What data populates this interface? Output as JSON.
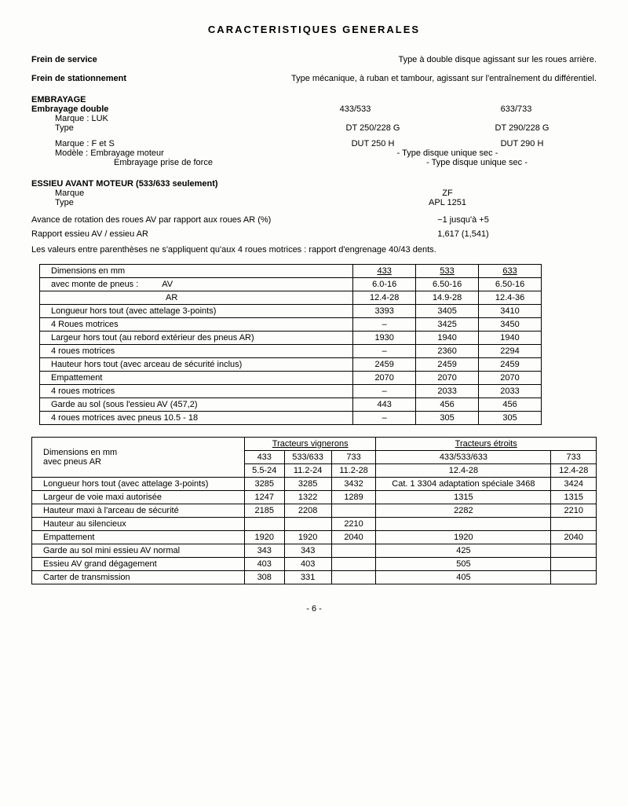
{
  "page_title": "CARACTERISTIQUES GENERALES",
  "frein_service_label": "Frein de service",
  "frein_service_value": "Type à double disque agissant sur les roues arrière.",
  "frein_stat_label": "Frein de stationnement",
  "frein_stat_value": "Type mécanique, à ruban et tambour, agissant sur l'entraînement du différentiel.",
  "embrayage_title": "EMBRAYAGE",
  "embrayage_double": "Embrayage double",
  "col_433_533": "433/533",
  "col_633_733": "633/733",
  "marqueLUK": "Marque : LUK",
  "type_label": "Type",
  "type_val1": "DT 250/228 G",
  "type_val2": "DT 290/228 G",
  "marqueFS": "Marque : F et S",
  "fs_val1": "DUT 250 H",
  "fs_val2": "DUT 290 H",
  "modele_moteur": "Modèle : Embrayage moteur",
  "modele_moteur_val": "- Type disque unique sec -",
  "modele_pdf": "Embrayage prise de force",
  "modele_pdf_val": "- Type disque unique sec -",
  "essieu_title": "ESSIEU AVANT MOTEUR (533/633 seulement)",
  "marque_label": "Marque",
  "marque_val": "ZF",
  "type2_label": "Type",
  "type2_val": "APL 1251",
  "avance_label": "Avance de rotation des roues AV par rapport aux roues AR (%)",
  "avance_val": "−1 jusqu'à +5",
  "rapport_label": "Rapport essieu AV / essieu AR",
  "rapport_val": "1,617 (1,541)",
  "note": "Les valeurs entre parenthèses ne s'appliquent qu'aux 4 roues motrices : rapport d'engrenage 40/43 dents.",
  "table1": {
    "title": "Dimensions en mm",
    "sub": "avec monte de pneus :",
    "cols": [
      "433",
      "533",
      "633"
    ],
    "av": "AV",
    "av_vals": [
      "6.0-16",
      "6.50-16",
      "6.50-16"
    ],
    "ar": "AR",
    "ar_vals": [
      "12.4-28",
      "14.9-28",
      "12.4-36"
    ],
    "rows": [
      {
        "l": "Longueur hors tout (avec attelage 3-points)",
        "v": [
          "3393",
          "3405",
          "3410"
        ]
      },
      {
        "l": "4 Roues motrices",
        "v": [
          "–",
          "3425",
          "3450"
        ]
      },
      {
        "l": "Largeur hors tout (au rebord extérieur des pneus AR)",
        "v": [
          "1930",
          "1940",
          "1940"
        ]
      },
      {
        "l": "4 roues motrices",
        "v": [
          "–",
          "2360",
          "2294"
        ]
      },
      {
        "l": "Hauteur hors tout (avec arceau de sécurité inclus)",
        "v": [
          "2459",
          "2459",
          "2459"
        ]
      },
      {
        "l": "Empattement",
        "v": [
          "2070",
          "2070",
          "2070"
        ]
      },
      {
        "l": "4 roues motrices",
        "v": [
          "–",
          "2033",
          "2033"
        ]
      },
      {
        "l": "Garde au sol (sous l'essieu AV (457,2)",
        "v": [
          "443",
          "456",
          "456"
        ]
      },
      {
        "l": "4 roues motrices avec pneus 10.5 - 18",
        "v": [
          "–",
          "305",
          "305"
        ]
      }
    ]
  },
  "table2": {
    "title": "Dimensions en mm",
    "sub": "avec pneus AR",
    "grp1": "Tracteurs vignerons",
    "grp2": "Tracteurs étroits",
    "hdr1": [
      "433",
      "533/633",
      "733",
      "433/533/633",
      "733"
    ],
    "hdr2": [
      "5.5-24",
      "11.2-24",
      "11.2-28",
      "12.4-28",
      "12.4-28"
    ],
    "longueur_label": "Longueur hors tout (avec attelage 3-points)",
    "longueur_vals": [
      "3285",
      "3285",
      "3432",
      "Cat. 1 3304 adaptation spéciale 3468",
      "3424"
    ],
    "rows": [
      {
        "l": "Largeur de voie maxi autorisée",
        "v": [
          "1247",
          "1322",
          "1289",
          "1315",
          "1315"
        ]
      },
      {
        "l": "Hauteur maxi à l'arceau de sécurité",
        "v": [
          "2185",
          "2208",
          "",
          "2282",
          "2210"
        ]
      },
      {
        "l": "Hauteur au silencieux",
        "v": [
          "",
          "",
          "2210",
          "",
          ""
        ]
      },
      {
        "l": "Empattement",
        "v": [
          "1920",
          "1920",
          "2040",
          "1920",
          "2040"
        ]
      },
      {
        "l": "Garde au sol mini essieu AV normal",
        "v": [
          "343",
          "343",
          "",
          "425",
          ""
        ]
      },
      {
        "l": "Essieu AV grand dégagement",
        "v": [
          "403",
          "403",
          "",
          "505",
          ""
        ]
      },
      {
        "l": "Carter de transmission",
        "v": [
          "308",
          "331",
          "",
          "405",
          ""
        ]
      }
    ]
  },
  "pagefoot": "- 6 -"
}
